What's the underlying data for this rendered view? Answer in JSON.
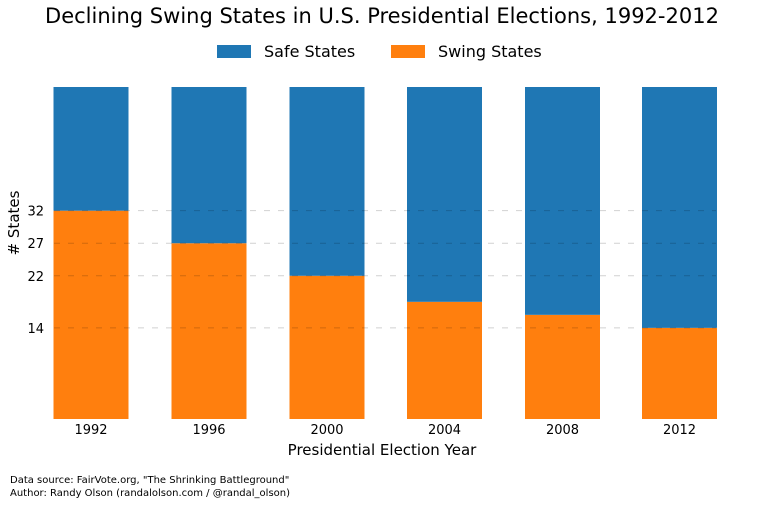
{
  "chart_data": {
    "type": "bar",
    "stacked": true,
    "title": "Declining Swing States in U.S. Presidential Elections, 1992-2012",
    "xlabel": "Presidential Election Year",
    "ylabel": "# States",
    "categories": [
      "1992",
      "1996",
      "2000",
      "2004",
      "2008",
      "2012"
    ],
    "series": [
      {
        "name": "Swing States",
        "values": [
          32,
          27,
          22,
          18,
          16,
          14
        ],
        "color": "#ff7f0e"
      },
      {
        "name": "Safe States",
        "values": [
          19,
          24,
          29,
          33,
          35,
          37
        ],
        "color": "#1f77b4"
      }
    ],
    "legend_order": [
      "Safe States",
      "Swing States"
    ],
    "yticks": [
      14,
      22,
      27,
      32
    ],
    "ylim": [
      0,
      51
    ],
    "grid": "horizontal dashed at y ticks",
    "legend_placement": "top-center"
  },
  "footer": {
    "source": "Data source: FairVote.org, \"The Shrinking Battleground\"",
    "author": "Author: Randy Olson (randalolson.com / @randal_olson)"
  }
}
